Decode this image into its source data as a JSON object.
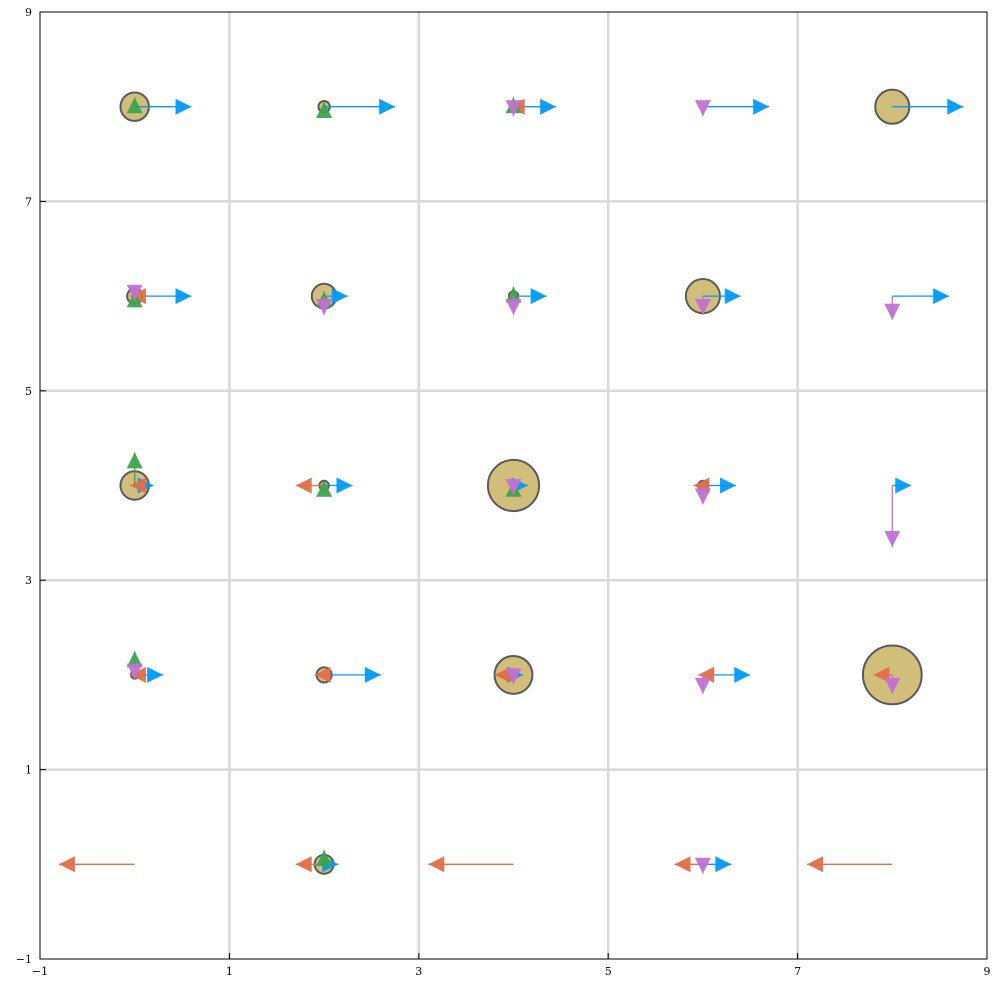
{
  "chart_data": {
    "type": "scatter",
    "title": "",
    "xlabel": "",
    "ylabel": "",
    "xlim": [
      -1,
      9
    ],
    "ylim": [
      -1,
      9
    ],
    "xticks": [
      "-1",
      "1",
      "3",
      "5",
      "7",
      "9"
    ],
    "yticks": [
      "-1",
      "1",
      "3",
      "5",
      "7",
      "9"
    ],
    "grid": true,
    "legend": "none",
    "colors": {
      "right_arrow": "#009af9",
      "left_arrow": "#e26f46",
      "up_arrow": "#3da44d",
      "down_arrow": "#c271d2",
      "circle_fill": "#c2a84f",
      "circle_edge": "#5a5a5a",
      "grid": "#d9d9d9"
    },
    "points": [
      {
        "x": 0,
        "y": 8,
        "right": 0.6,
        "left": 0.0,
        "up": 0.1,
        "down": 0.0,
        "size": 0.15
      },
      {
        "x": 2,
        "y": 8,
        "right": 0.75,
        "left": 0.0,
        "up": 0.05,
        "down": 0.0,
        "size": 0.06
      },
      {
        "x": 4,
        "y": 8,
        "right": 0.45,
        "left": 0.05,
        "up": 0.1,
        "down": 0.1,
        "size": 0.03
      },
      {
        "x": 6,
        "y": 8,
        "right": 0.7,
        "left": 0.0,
        "up": 0.0,
        "down": 0.1,
        "size": 0.0
      },
      {
        "x": 8,
        "y": 8,
        "right": 0.75,
        "left": 0.0,
        "up": 0.0,
        "down": 0.0,
        "size": 0.18
      },
      {
        "x": 0,
        "y": 6,
        "right": 0.6,
        "left": 0.05,
        "up": 0.05,
        "down": 0.05,
        "size": 0.08
      },
      {
        "x": 2,
        "y": 6,
        "right": 0.25,
        "left": 0.0,
        "up": 0.05,
        "down": 0.2,
        "size": 0.13
      },
      {
        "x": 4,
        "y": 6,
        "right": 0.35,
        "left": 0.0,
        "up": 0.1,
        "down": 0.2,
        "size": 0.05
      },
      {
        "x": 6,
        "y": 6,
        "right": 0.4,
        "left": 0.0,
        "up": 0.0,
        "down": 0.2,
        "size": 0.18
      },
      {
        "x": 8,
        "y": 6,
        "right": 0.6,
        "left": 0.0,
        "up": 0.0,
        "down": 0.25,
        "size": 0.0
      },
      {
        "x": 0,
        "y": 4,
        "right": 0.2,
        "left": 0.05,
        "up": 0.35,
        "down": 0.0,
        "size": 0.15
      },
      {
        "x": 2,
        "y": 4,
        "right": 0.3,
        "left": 0.3,
        "up": 0.05,
        "down": 0.0,
        "size": 0.05
      },
      {
        "x": 4,
        "y": 4,
        "right": 0.15,
        "left": 0.0,
        "up": 0.05,
        "down": 0.1,
        "size": 0.27
      },
      {
        "x": 6,
        "y": 4,
        "right": 0.35,
        "left": 0.1,
        "up": 0.0,
        "down": 0.2,
        "size": 0.05
      },
      {
        "x": 8,
        "y": 4,
        "right": 0.2,
        "left": 0.0,
        "up": 0.0,
        "down": 0.65,
        "size": 0.0
      },
      {
        "x": 0,
        "y": 2,
        "right": 0.3,
        "left": 0.05,
        "up": 0.25,
        "down": 0.05,
        "size": 0.04
      },
      {
        "x": 2,
        "y": 2,
        "right": 0.6,
        "left": 0.1,
        "up": 0.0,
        "down": 0.0,
        "size": 0.08
      },
      {
        "x": 4,
        "y": 2,
        "right": 0.1,
        "left": 0.2,
        "up": 0.0,
        "down": 0.1,
        "size": 0.2
      },
      {
        "x": 6,
        "y": 2,
        "right": 0.5,
        "left": 0.05,
        "up": 0.0,
        "down": 0.2,
        "size": 0.0
      },
      {
        "x": 8,
        "y": 2,
        "right": 0.0,
        "left": 0.2,
        "up": 0.0,
        "down": 0.2,
        "size": 0.31
      },
      {
        "x": 0,
        "y": 0,
        "right": 0.0,
        "left": 0.8,
        "up": 0.0,
        "down": 0.0,
        "size": 0.0
      },
      {
        "x": 2,
        "y": 0,
        "right": 0.15,
        "left": 0.3,
        "up": 0.15,
        "down": 0.0,
        "size": 0.1
      },
      {
        "x": 4,
        "y": 0,
        "right": 0.0,
        "left": 0.9,
        "up": 0.0,
        "down": 0.0,
        "size": 0.0
      },
      {
        "x": 6,
        "y": 0,
        "right": 0.3,
        "left": 0.3,
        "up": 0.0,
        "down": 0.1,
        "size": 0.0
      },
      {
        "x": 8,
        "y": 0,
        "right": 0.0,
        "left": 0.9,
        "up": 0.0,
        "down": 0.0,
        "size": 0.0
      }
    ]
  }
}
